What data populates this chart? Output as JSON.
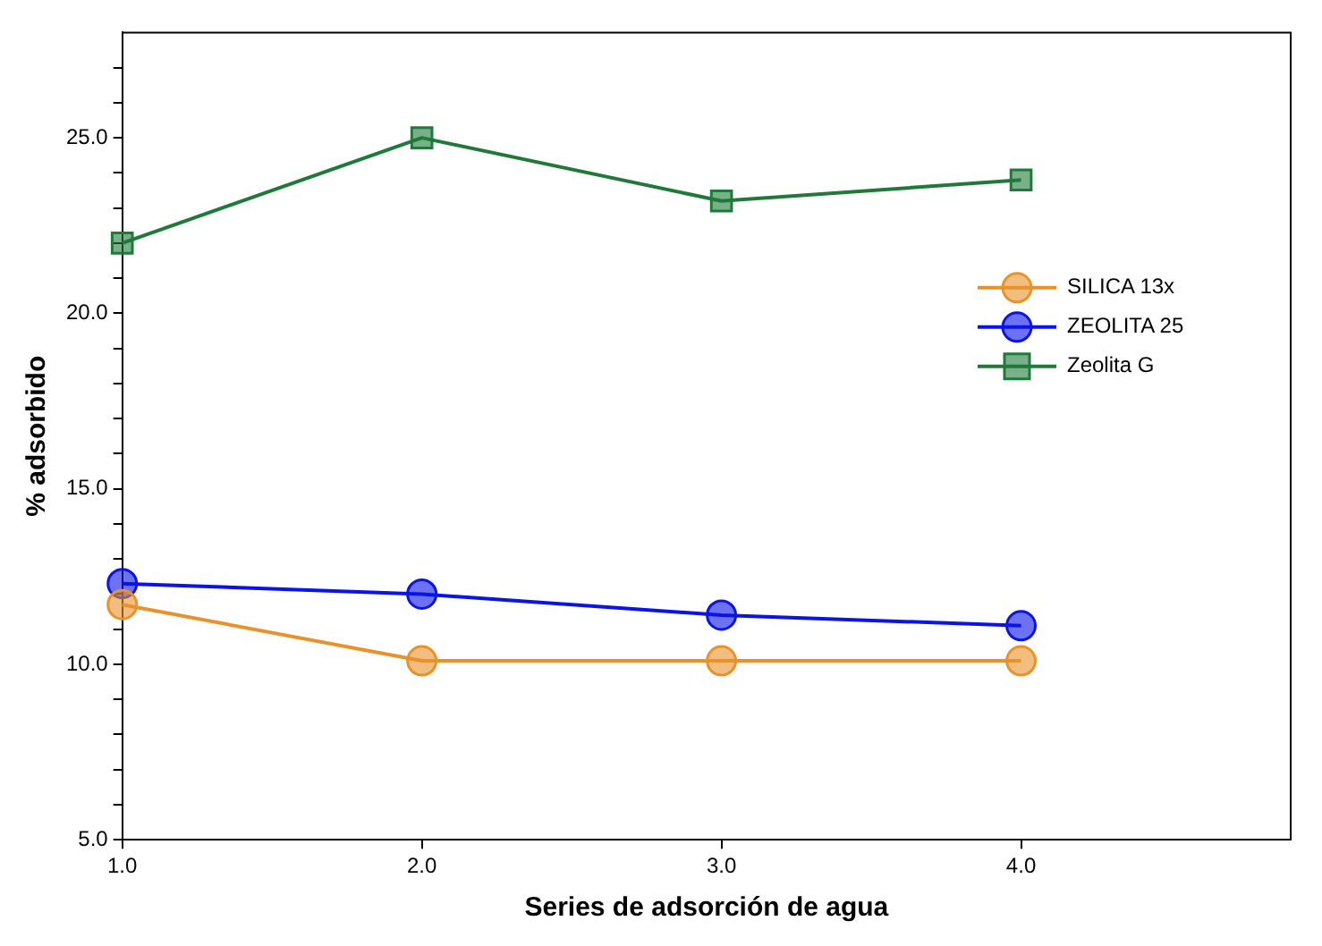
{
  "chart_data": {
    "type": "line",
    "xlabel": "Series de adsorción de agua",
    "ylabel": "% adsorbido",
    "x": [
      1,
      2,
      3,
      4
    ],
    "series": [
      {
        "name": "SILICA 13x",
        "color": "#e8922a",
        "marker": "circle",
        "values": [
          11.7,
          10.1,
          10.1,
          10.1
        ]
      },
      {
        "name": "ZEOLITA 25",
        "color": "#0a14e6",
        "marker": "circle",
        "values": [
          12.3,
          12.0,
          11.4,
          11.1
        ]
      },
      {
        "name": "Zeolita G",
        "color": "#1f7a3a",
        "marker": "square",
        "values": [
          22.0,
          25.0,
          23.2,
          23.8
        ]
      }
    ],
    "xlim": [
      1,
      4.9
    ],
    "xticks": [
      {
        "value": 1,
        "label": "1.0"
      },
      {
        "value": 2,
        "label": "2.0"
      },
      {
        "value": 3,
        "label": "3.0"
      },
      {
        "value": 4,
        "label": "4.0"
      }
    ],
    "ylim": [
      5,
      28
    ],
    "yticks": [
      {
        "value": 5,
        "label": "5.0"
      },
      {
        "value": 6,
        "label": null
      },
      {
        "value": 7,
        "label": null
      },
      {
        "value": 8,
        "label": null
      },
      {
        "value": 9,
        "label": null
      },
      {
        "value": 10,
        "label": "10.0"
      },
      {
        "value": 11,
        "label": null
      },
      {
        "value": 12,
        "label": null
      },
      {
        "value": 13,
        "label": null
      },
      {
        "value": 14,
        "label": null
      },
      {
        "value": 15,
        "label": "15.0"
      },
      {
        "value": 16,
        "label": null
      },
      {
        "value": 17,
        "label": null
      },
      {
        "value": 18,
        "label": null
      },
      {
        "value": 19,
        "label": null
      },
      {
        "value": 20,
        "label": "20.0"
      },
      {
        "value": 21,
        "label": null
      },
      {
        "value": 22,
        "label": null
      },
      {
        "value": 23,
        "label": null
      },
      {
        "value": 24,
        "label": null
      },
      {
        "value": 25,
        "label": "25.0"
      },
      {
        "value": 26,
        "label": null
      },
      {
        "value": 27,
        "label": null
      }
    ],
    "grid": false,
    "legend": "right",
    "line_style": "solid"
  }
}
